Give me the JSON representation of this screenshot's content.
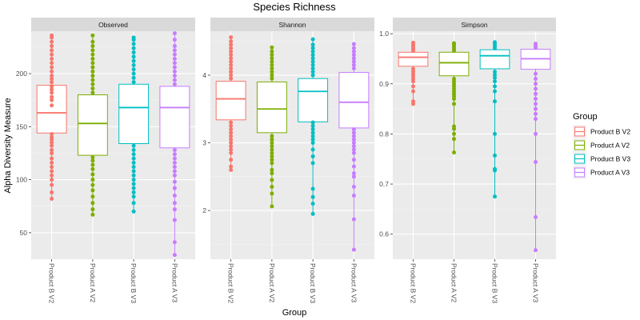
{
  "chart_data": {
    "type": "boxplot",
    "title": "Species Richness",
    "xlabel": "Group",
    "ylabel": "Alpha Diversity Measure",
    "categories": [
      "Product B V2",
      "Product A V2",
      "Product B V3",
      "Product A V3"
    ],
    "colors": [
      "#F8766D",
      "#7CAE00",
      "#00BFC4",
      "#C77CFF"
    ],
    "legend": {
      "title": "Group",
      "placement": "right",
      "entries": [
        "Product B V2",
        "Product A V2",
        "Product B V3",
        "Product A V3"
      ]
    },
    "grid": true,
    "facets": [
      {
        "name": "Observed",
        "ylim": [
          25,
          240
        ],
        "yticks": [
          50,
          100,
          150,
          200
        ],
        "boxes": [
          {
            "q1": 144,
            "median": 163,
            "q3": 189,
            "whisker_low": 82,
            "whisker_high": 236,
            "points": [
              82,
              88,
              95,
              100,
              104,
              108,
              112,
              116,
              120,
              125,
              128,
              132,
              135,
              138,
              140,
              143,
              170,
              175,
              178,
              182,
              185,
              188,
              192,
              195,
              198,
              202,
              206,
              210,
              214,
              218,
              222,
              226,
              230,
              234,
              236
            ]
          },
          {
            "q1": 123,
            "median": 153,
            "q3": 180,
            "whisker_low": 67,
            "whisker_high": 236,
            "points": [
              67,
              72,
              78,
              84,
              90,
              95,
              100,
              105,
              110,
              114,
              118,
              121,
              182,
              186,
              190,
              194,
              198,
              202,
              206,
              210,
              214,
              218,
              222,
              226,
              230,
              236
            ]
          },
          {
            "q1": 134,
            "median": 168,
            "q3": 190,
            "whisker_low": 70,
            "whisker_high": 234,
            "points": [
              70,
              78,
              84,
              88,
              92,
              96,
              100,
              104,
              108,
              112,
              116,
              120,
              124,
              128,
              132,
              192,
              196,
              200,
              204,
              208,
              212,
              216,
              220,
              224,
              228,
              232,
              234
            ]
          },
          {
            "q1": 130,
            "median": 168,
            "q3": 188,
            "whisker_low": 29,
            "whisker_high": 238,
            "points": [
              29,
              41,
              62,
              72,
              78,
              85,
              92,
              98,
              104,
              108,
              112,
              116,
              120,
              124,
              128,
              190,
              194,
              198,
              202,
              206,
              210,
              214,
              218,
              222,
              226,
              232,
              238
            ]
          }
        ]
      },
      {
        "name": "Shannon",
        "ylim": [
          1.28,
          4.65
        ],
        "yticks": [
          2,
          3,
          4
        ],
        "boxes": [
          {
            "q1": 3.34,
            "median": 3.65,
            "q3": 3.91,
            "whisker_low": 2.6,
            "whisker_high": 4.56,
            "points": [
              2.6,
              2.65,
              2.75,
              2.85,
              2.9,
              2.95,
              3.0,
              3.05,
              3.1,
              3.15,
              3.2,
              3.25,
              3.3,
              3.95,
              4.0,
              4.05,
              4.1,
              4.15,
              4.2,
              4.25,
              4.3,
              4.35,
              4.4,
              4.45,
              4.5,
              4.56
            ]
          },
          {
            "q1": 3.15,
            "median": 3.5,
            "q3": 3.9,
            "whisker_low": 2.06,
            "whisker_high": 4.41,
            "points": [
              2.06,
              2.25,
              2.35,
              2.45,
              2.55,
              2.6,
              2.7,
              2.75,
              2.8,
              2.85,
              2.9,
              2.95,
              3.0,
              3.05,
              3.1,
              3.95,
              4.0,
              4.05,
              4.1,
              4.15,
              4.2,
              4.25,
              4.3,
              4.35,
              4.41
            ]
          },
          {
            "q1": 3.31,
            "median": 3.76,
            "q3": 3.95,
            "whisker_low": 1.95,
            "whisker_high": 4.53,
            "points": [
              1.95,
              2.1,
              2.2,
              2.32,
              2.7,
              2.8,
              2.9,
              3.0,
              3.05,
              3.1,
              3.15,
              3.2,
              3.25,
              3.3,
              4.0,
              4.05,
              4.1,
              4.15,
              4.2,
              4.25,
              4.3,
              4.35,
              4.4,
              4.45,
              4.53
            ]
          },
          {
            "q1": 3.22,
            "median": 3.6,
            "q3": 4.04,
            "whisker_low": 1.42,
            "whisker_high": 4.46,
            "points": [
              1.42,
              1.87,
              2.22,
              2.35,
              2.5,
              2.55,
              2.65,
              2.75,
              2.85,
              2.9,
              2.95,
              3.0,
              3.05,
              3.1,
              3.15,
              3.2,
              4.1,
              4.15,
              4.2,
              4.25,
              4.3,
              4.35,
              4.4,
              4.46
            ]
          }
        ]
      },
      {
        "name": "Simpson",
        "ylim": [
          0.55,
          1.005
        ],
        "yticks": [
          0.6,
          0.7,
          0.8,
          0.9,
          1.0
        ],
        "ytick_labels": [
          "0.6",
          "0.7",
          "0.8",
          "0.9",
          "1.0"
        ],
        "boxes": [
          {
            "q1": 0.935,
            "median": 0.953,
            "q3": 0.963,
            "whisker_low": 0.86,
            "whisker_high": 0.982,
            "points": [
              0.86,
              0.865,
              0.885,
              0.895,
              0.905,
              0.91,
              0.915,
              0.92,
              0.925,
              0.93,
              0.966,
              0.97,
              0.974,
              0.978,
              0.982
            ]
          },
          {
            "q1": 0.916,
            "median": 0.942,
            "q3": 0.963,
            "whisker_low": 0.763,
            "whisker_high": 0.981,
            "points": [
              0.763,
              0.79,
              0.8,
              0.81,
              0.815,
              0.86,
              0.87,
              0.875,
              0.88,
              0.885,
              0.89,
              0.895,
              0.9,
              0.905,
              0.91,
              0.966,
              0.97,
              0.974,
              0.978,
              0.981
            ]
          },
          {
            "q1": 0.93,
            "median": 0.956,
            "q3": 0.968,
            "whisker_low": 0.675,
            "whisker_high": 0.983,
            "points": [
              0.675,
              0.727,
              0.73,
              0.757,
              0.8,
              0.865,
              0.885,
              0.895,
              0.905,
              0.912,
              0.918,
              0.924,
              0.971,
              0.975,
              0.979,
              0.983
            ]
          },
          {
            "q1": 0.929,
            "median": 0.95,
            "q3": 0.969,
            "whisker_low": 0.568,
            "whisker_high": 0.98,
            "points": [
              0.568,
              0.634,
              0.744,
              0.8,
              0.83,
              0.84,
              0.85,
              0.86,
              0.87,
              0.88,
              0.89,
              0.9,
              0.91,
              0.92,
              0.972,
              0.976,
              0.98
            ]
          }
        ]
      }
    ]
  }
}
